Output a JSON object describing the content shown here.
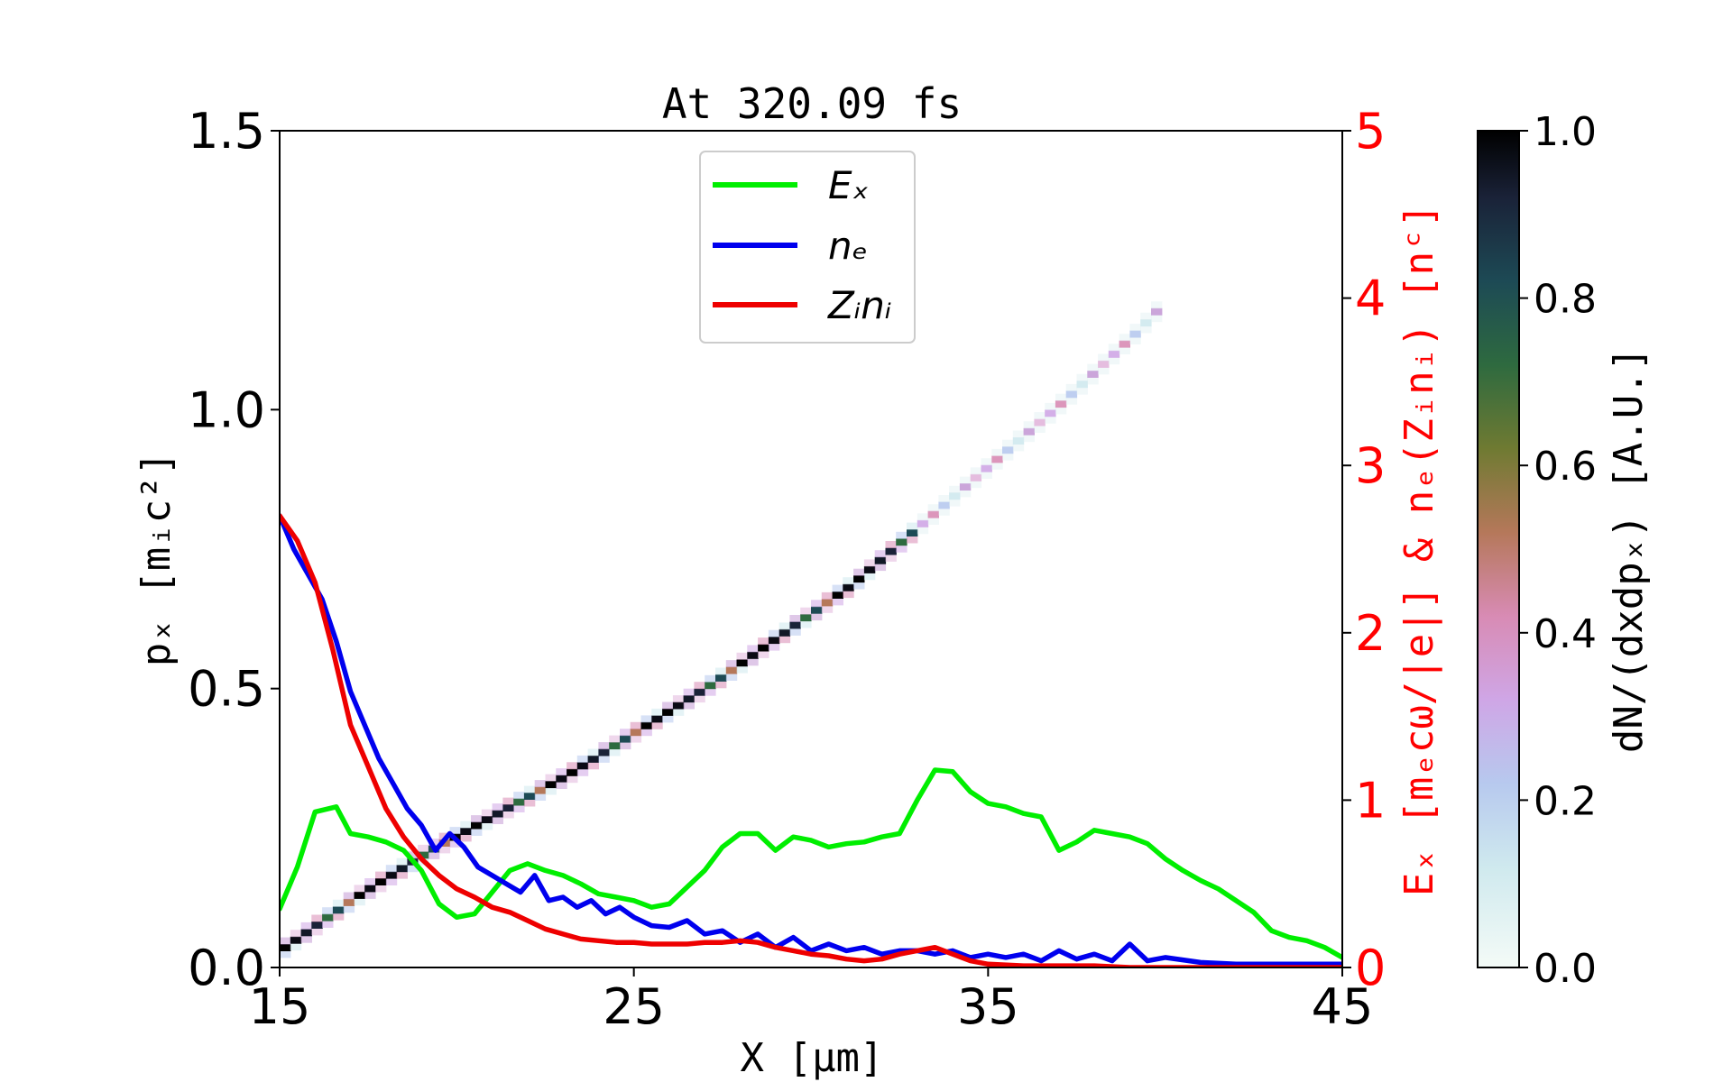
{
  "chart_data": {
    "type": "heatmap",
    "title": "At 320.09 fs",
    "xlabel": "X [μm]",
    "ylabel_left": "pₓ [mᵢc²]",
    "ylabel_right": "Eₓ [mₑcω/|e|] & nₑ(Zᵢnᵢ) [nᶜ]",
    "colorbar_label": "dN/(dxdpₓ) [A.U.]",
    "xlim": [
      15,
      45
    ],
    "ylim_left": [
      0,
      1.5
    ],
    "ylim_right": [
      0,
      5
    ],
    "colorbar_lim": [
      0,
      1
    ],
    "x_ticks": [
      "15",
      "25",
      "35",
      "45"
    ],
    "y_left_ticks": [
      "0.0",
      "0.5",
      "1.0",
      "1.5"
    ],
    "y_right_ticks": [
      "0",
      "1",
      "2",
      "3",
      "4",
      "5"
    ],
    "colorbar_ticks": [
      "0.0",
      "0.2",
      "0.4",
      "0.6",
      "0.8",
      "1.0"
    ],
    "legend_position": "upper-center",
    "grid": false,
    "phase_space_ridge": {
      "x": [
        15,
        17,
        19,
        21,
        23,
        25,
        27,
        29,
        31,
        33,
        35,
        37,
        39,
        39.6
      ],
      "px": [
        0.03,
        0.12,
        0.2,
        0.27,
        0.34,
        0.42,
        0.5,
        0.59,
        0.68,
        0.79,
        0.9,
        1.01,
        1.13,
        1.17
      ],
      "dense_until_x": 33
    },
    "series": [
      {
        "name": "Eₓ",
        "color": "#00ee00",
        "axis": "right",
        "x": [
          15,
          15.5,
          16,
          16.6,
          17,
          17.5,
          18,
          18.5,
          19,
          19.5,
          20,
          20.5,
          21,
          21.5,
          22,
          22.5,
          23,
          23.5,
          24,
          24.5,
          25,
          25.5,
          26,
          26.5,
          27,
          27.5,
          28,
          28.5,
          29,
          29.5,
          30,
          30.5,
          31,
          31.5,
          32,
          32.5,
          33,
          33.5,
          34,
          34.5,
          35,
          35.5,
          36,
          36.5,
          37,
          37.5,
          38,
          38.5,
          39,
          39.5,
          40,
          40.5,
          41,
          41.5,
          42,
          42.5,
          43,
          43.5,
          44,
          44.5,
          45
        ],
        "values": [
          0.35,
          0.6,
          0.93,
          0.96,
          0.8,
          0.78,
          0.75,
          0.7,
          0.58,
          0.38,
          0.3,
          0.32,
          0.45,
          0.58,
          0.62,
          0.58,
          0.55,
          0.5,
          0.44,
          0.42,
          0.4,
          0.36,
          0.38,
          0.48,
          0.58,
          0.72,
          0.8,
          0.8,
          0.7,
          0.78,
          0.76,
          0.72,
          0.74,
          0.75,
          0.78,
          0.8,
          1.0,
          1.18,
          1.17,
          1.05,
          0.98,
          0.96,
          0.92,
          0.9,
          0.7,
          0.75,
          0.82,
          0.8,
          0.78,
          0.74,
          0.65,
          0.58,
          0.52,
          0.47,
          0.4,
          0.33,
          0.22,
          0.18,
          0.16,
          0.12,
          0.06
        ]
      },
      {
        "name": "nₑ",
        "color": "#0000ee",
        "axis": "right",
        "x": [
          15,
          15.4,
          15.8,
          16.2,
          16.6,
          17,
          17.4,
          17.8,
          18.2,
          18.6,
          19,
          19.4,
          19.8,
          20.2,
          20.6,
          21,
          21.4,
          21.8,
          22.2,
          22.6,
          23,
          23.4,
          23.8,
          24.2,
          24.6,
          25,
          25.5,
          26,
          26.5,
          27,
          27.5,
          28,
          28.5,
          29,
          29.5,
          30,
          30.5,
          31,
          31.5,
          32,
          32.5,
          33,
          33.5,
          34,
          34.5,
          35,
          35.5,
          36,
          36.5,
          37,
          37.5,
          38,
          38.5,
          39,
          39.5,
          40,
          41,
          42,
          43,
          44,
          45
        ],
        "values": [
          2.7,
          2.5,
          2.35,
          2.2,
          1.95,
          1.65,
          1.45,
          1.25,
          1.1,
          0.95,
          0.85,
          0.7,
          0.8,
          0.72,
          0.6,
          0.55,
          0.5,
          0.45,
          0.55,
          0.4,
          0.42,
          0.36,
          0.4,
          0.32,
          0.36,
          0.3,
          0.25,
          0.24,
          0.28,
          0.2,
          0.22,
          0.15,
          0.2,
          0.12,
          0.18,
          0.1,
          0.14,
          0.1,
          0.12,
          0.08,
          0.1,
          0.1,
          0.08,
          0.1,
          0.06,
          0.08,
          0.06,
          0.08,
          0.04,
          0.1,
          0.05,
          0.08,
          0.04,
          0.14,
          0.04,
          0.06,
          0.03,
          0.02,
          0.02,
          0.02,
          0.02
        ]
      },
      {
        "name": "Zᵢnᵢ",
        "color": "#ee0000",
        "axis": "right",
        "x": [
          15,
          15.5,
          16,
          16.5,
          17,
          17.5,
          18,
          18.5,
          19,
          19.5,
          20,
          20.5,
          21,
          21.5,
          22,
          22.5,
          23,
          23.5,
          24,
          24.5,
          25,
          25.5,
          26,
          26.5,
          27,
          27.5,
          28,
          28.5,
          29,
          29.5,
          30,
          30.5,
          31,
          31.5,
          32,
          32.5,
          33,
          33.5,
          34,
          34.5,
          35,
          36,
          37,
          38,
          39,
          40,
          41,
          42,
          43,
          44,
          45
        ],
        "values": [
          2.7,
          2.55,
          2.3,
          1.9,
          1.45,
          1.2,
          0.95,
          0.78,
          0.65,
          0.55,
          0.47,
          0.42,
          0.36,
          0.33,
          0.28,
          0.23,
          0.2,
          0.17,
          0.16,
          0.15,
          0.15,
          0.14,
          0.14,
          0.14,
          0.15,
          0.15,
          0.16,
          0.15,
          0.12,
          0.1,
          0.08,
          0.07,
          0.05,
          0.04,
          0.05,
          0.08,
          0.1,
          0.12,
          0.08,
          0.04,
          0.02,
          0.01,
          0.01,
          0.01,
          0.0,
          0.0,
          0.0,
          0.0,
          0.0,
          0.0,
          0.0
        ]
      }
    ]
  }
}
